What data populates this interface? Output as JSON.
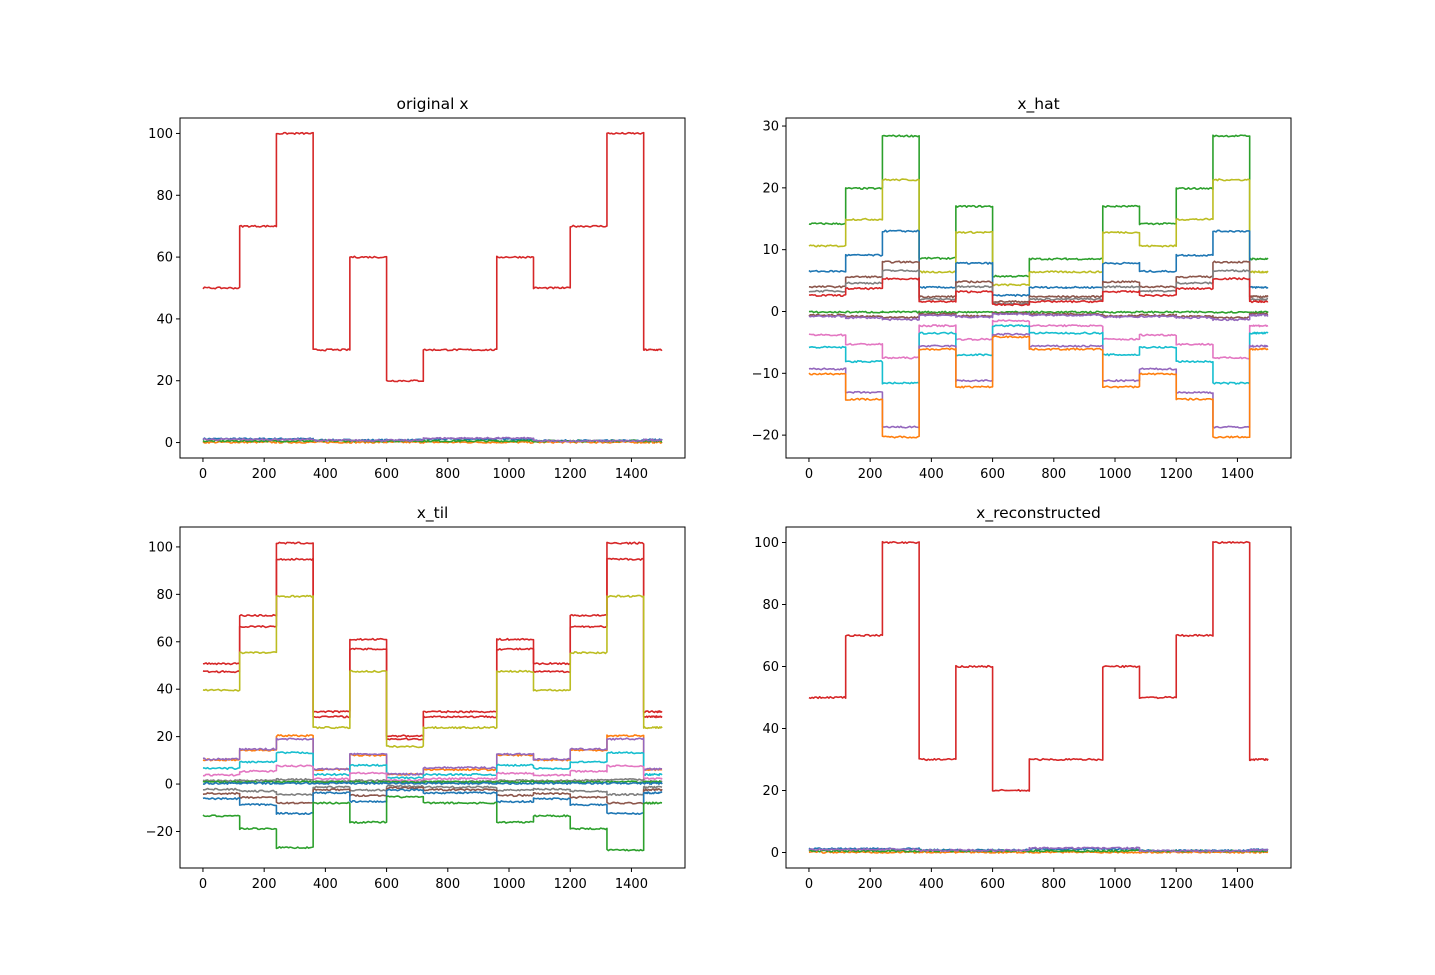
{
  "chart_data": [
    {
      "type": "line",
      "title": "original x",
      "xlabel": "",
      "ylabel": "",
      "xlim": [
        -75,
        1575
      ],
      "ylim": [
        -5,
        105
      ],
      "xticks": [
        0,
        200,
        400,
        600,
        800,
        1000,
        1200,
        1400
      ],
      "yticks": [
        0,
        20,
        40,
        60,
        80,
        100
      ],
      "xtick_labels": [
        "0",
        "200",
        "400",
        "600",
        "800",
        "1000",
        "1200",
        "1400"
      ],
      "ytick_labels": [
        "0",
        "20",
        "40",
        "60",
        "80",
        "100"
      ],
      "grid": false,
      "legend": "none",
      "step_boundaries": [
        0,
        120,
        240,
        360,
        480,
        600,
        720,
        840,
        960,
        1080,
        1200,
        1320,
        1440,
        1500
      ],
      "series": [
        {
          "color": "#1f77b4",
          "values": [
            1.2,
            1.2,
            1.2,
            0.8,
            0.8,
            0.8,
            1.1,
            1.1,
            1.1,
            0.6,
            0.6,
            0.6,
            0.9
          ]
        },
        {
          "color": "#ff7f0e",
          "values": [
            0.1,
            0.1,
            0.1,
            0.1,
            0.1,
            0.1,
            0.1,
            0.1,
            0.1,
            0.1,
            0.1,
            0.1,
            0.1
          ]
        },
        {
          "color": "#2ca02c",
          "values": [
            0.5,
            0.5,
            0.5,
            0.5,
            0.5,
            0.5,
            0.5,
            0.5,
            0.5,
            0.5,
            0.5,
            0.5,
            0.5
          ]
        },
        {
          "color": "#9467bd",
          "values": [
            1.0,
            1.0,
            1.0,
            0.7,
            0.7,
            0.7,
            1.4,
            1.4,
            1.4,
            0.5,
            0.5,
            0.5,
            0.8
          ]
        },
        {
          "color": "#d62728",
          "values": [
            50,
            70,
            100,
            30,
            60,
            20,
            30,
            30,
            60,
            50,
            70,
            100,
            30
          ]
        }
      ]
    },
    {
      "type": "line",
      "title": "x_hat",
      "xlabel": "",
      "ylabel": "",
      "xlim": [
        -75,
        1575
      ],
      "ylim": [
        -23.7,
        31.3
      ],
      "xticks": [
        0,
        200,
        400,
        600,
        800,
        1000,
        1200,
        1400
      ],
      "yticks": [
        -20,
        -10,
        0,
        10,
        20,
        30
      ],
      "xtick_labels": [
        "0",
        "200",
        "400",
        "600",
        "800",
        "1000",
        "1200",
        "1400"
      ],
      "ytick_labels": [
        "−20",
        "−10",
        "0",
        "10",
        "20",
        "30"
      ],
      "grid": false,
      "legend": "none",
      "step_boundaries": [
        0,
        120,
        240,
        360,
        480,
        600,
        720,
        840,
        960,
        1080,
        1200,
        1320,
        1440,
        1500
      ],
      "series": [
        {
          "color": "#2ca02c",
          "values": [
            14.2,
            19.9,
            28.4,
            8.6,
            17.0,
            5.7,
            8.5,
            8.5,
            17.0,
            14.2,
            19.9,
            28.4,
            8.5
          ]
        },
        {
          "color": "#bcbd22",
          "values": [
            10.6,
            14.9,
            21.3,
            6.4,
            12.8,
            4.3,
            6.4,
            6.4,
            12.8,
            10.6,
            14.9,
            21.3,
            6.4
          ]
        },
        {
          "color": "#1f77b4",
          "values": [
            6.5,
            9.1,
            13.0,
            3.9,
            7.8,
            2.6,
            3.9,
            3.9,
            7.8,
            6.5,
            9.1,
            13.0,
            3.9
          ]
        },
        {
          "color": "#8c564b",
          "values": [
            4.0,
            5.6,
            8.0,
            2.4,
            4.8,
            1.6,
            2.4,
            2.4,
            4.8,
            4.0,
            5.6,
            8.0,
            2.4
          ]
        },
        {
          "color": "#7f7f7f",
          "values": [
            3.3,
            4.6,
            6.6,
            2.0,
            4.0,
            1.3,
            2.0,
            2.0,
            4.0,
            3.3,
            4.6,
            6.6,
            2.0
          ]
        },
        {
          "color": "#d62728",
          "values": [
            2.6,
            3.7,
            5.3,
            1.6,
            3.2,
            1.1,
            1.6,
            1.6,
            3.2,
            2.6,
            3.7,
            5.3,
            1.6
          ]
        },
        {
          "color": "#2ca02c",
          "values": [
            -0.1,
            -0.1,
            -0.1,
            -0.1,
            -0.1,
            -0.1,
            -0.1,
            -0.1,
            -0.1,
            -0.1,
            -0.1,
            -0.1,
            -0.1
          ]
        },
        {
          "color": "#8c564b",
          "values": [
            -0.6,
            -0.8,
            -1.0,
            -0.4,
            -0.7,
            -0.3,
            -0.4,
            -0.4,
            -0.7,
            -0.6,
            -0.8,
            -1.0,
            -0.4
          ]
        },
        {
          "color": "#9467bd",
          "values": [
            -0.8,
            -1.0,
            -1.3,
            -0.6,
            -0.9,
            -0.4,
            -0.6,
            -0.6,
            -0.9,
            -0.8,
            -1.0,
            -1.3,
            -0.6
          ]
        },
        {
          "color": "#e377c2",
          "values": [
            -3.8,
            -5.3,
            -7.5,
            -2.3,
            -4.5,
            -1.5,
            -2.3,
            -2.3,
            -4.5,
            -3.8,
            -5.3,
            -7.5,
            -2.3
          ]
        },
        {
          "color": "#17becf",
          "values": [
            -5.8,
            -8.1,
            -11.6,
            -3.5,
            -7.0,
            -2.3,
            -3.5,
            -3.5,
            -7.0,
            -5.8,
            -8.1,
            -11.6,
            -3.5
          ]
        },
        {
          "color": "#9467bd",
          "values": [
            -9.3,
            -13.1,
            -18.7,
            -5.6,
            -11.2,
            -3.7,
            -5.6,
            -5.6,
            -11.2,
            -9.3,
            -13.1,
            -18.7,
            -5.6
          ]
        },
        {
          "color": "#ff7f0e",
          "values": [
            -10.1,
            -14.2,
            -20.3,
            -6.1,
            -12.2,
            -4.1,
            -6.1,
            -6.1,
            -12.2,
            -10.1,
            -14.2,
            -20.3,
            -6.1
          ]
        }
      ]
    },
    {
      "type": "line",
      "title": "x_til",
      "xlabel": "",
      "ylabel": "",
      "xlim": [
        -75,
        1575
      ],
      "ylim": [
        -35.4,
        108.4
      ],
      "xticks": [
        0,
        200,
        400,
        600,
        800,
        1000,
        1200,
        1400
      ],
      "yticks": [
        -20,
        0,
        20,
        40,
        60,
        80,
        100
      ],
      "xtick_labels": [
        "0",
        "200",
        "400",
        "600",
        "800",
        "1000",
        "1200",
        "1400"
      ],
      "ytick_labels": [
        "−20",
        "0",
        "20",
        "40",
        "60",
        "80",
        "100"
      ],
      "grid": false,
      "legend": "none",
      "step_boundaries": [
        0,
        120,
        240,
        360,
        480,
        600,
        720,
        840,
        960,
        1080,
        1200,
        1320,
        1440,
        1500
      ],
      "series": [
        {
          "color": "#d62728",
          "values": [
            50.8,
            71.1,
            101.6,
            30.5,
            61.0,
            20.3,
            30.5,
            30.5,
            61.0,
            50.8,
            71.1,
            101.6,
            30.5
          ]
        },
        {
          "color": "#d62728",
          "values": [
            47.4,
            66.4,
            94.8,
            28.4,
            56.9,
            19.0,
            28.4,
            28.4,
            56.9,
            47.4,
            66.4,
            94.8,
            28.4
          ]
        },
        {
          "color": "#bcbd22",
          "values": [
            39.6,
            55.4,
            79.2,
            23.8,
            47.5,
            15.8,
            23.8,
            23.8,
            47.5,
            39.6,
            55.4,
            79.2,
            23.8
          ]
        },
        {
          "color": "#ff7f0e",
          "values": [
            10.2,
            14.3,
            20.4,
            6.1,
            12.2,
            4.1,
            6.1,
            6.1,
            12.2,
            10.2,
            14.3,
            20.4,
            6.1
          ]
        },
        {
          "color": "#9467bd",
          "values": [
            10.5,
            14.7,
            19.0,
            6.3,
            12.6,
            4.2,
            6.9,
            6.9,
            12.6,
            10.5,
            14.7,
            19.0,
            6.3
          ]
        },
        {
          "color": "#17becf",
          "values": [
            6.6,
            9.3,
            13.2,
            4.0,
            7.9,
            2.6,
            4.0,
            4.0,
            7.9,
            6.6,
            9.3,
            13.2,
            4.0
          ]
        },
        {
          "color": "#e377c2",
          "values": [
            3.8,
            5.4,
            7.6,
            2.3,
            4.6,
            1.5,
            2.3,
            2.3,
            4.6,
            3.8,
            5.4,
            7.6,
            2.3
          ]
        },
        {
          "color": "#7f7f7f",
          "values": [
            1.4,
            1.6,
            1.9,
            1.1,
            1.5,
            0.9,
            1.1,
            1.1,
            1.5,
            1.4,
            1.6,
            1.9,
            1.1
          ]
        },
        {
          "color": "#2ca02c",
          "values": [
            0.9,
            0.9,
            0.9,
            0.9,
            0.9,
            0.9,
            0.9,
            0.9,
            0.9,
            0.9,
            0.9,
            0.9,
            0.9
          ]
        },
        {
          "color": "#1f77b4",
          "values": [
            0.3,
            0.3,
            0.3,
            0.3,
            0.3,
            0.3,
            0.3,
            0.3,
            0.3,
            0.3,
            0.3,
            0.3,
            0.3
          ]
        },
        {
          "color": "#7f7f7f",
          "values": [
            -2.2,
            -3.0,
            -4.4,
            -1.3,
            -2.6,
            -0.9,
            -1.3,
            -1.3,
            -2.6,
            -2.2,
            -3.0,
            -4.4,
            -1.3
          ]
        },
        {
          "color": "#8c564b",
          "values": [
            -4.0,
            -5.6,
            -8.0,
            -2.4,
            -4.8,
            -1.6,
            -2.4,
            -2.4,
            -4.8,
            -4.0,
            -5.6,
            -8.0,
            -2.4
          ]
        },
        {
          "color": "#1f77b4",
          "values": [
            -6.2,
            -8.7,
            -12.4,
            -3.7,
            -7.4,
            -2.5,
            -3.7,
            -3.7,
            -7.4,
            -6.2,
            -8.7,
            -12.4,
            -3.7
          ]
        },
        {
          "color": "#2ca02c",
          "values": [
            -13.4,
            -18.8,
            -26.8,
            -8.0,
            -16.1,
            -5.4,
            -8.0,
            -8.0,
            -16.1,
            -13.4,
            -18.8,
            -27.8,
            -8.0
          ]
        }
      ]
    },
    {
      "type": "line",
      "title": "x_reconstructed",
      "xlabel": "",
      "ylabel": "",
      "xlim": [
        -75,
        1575
      ],
      "ylim": [
        -5,
        105
      ],
      "xticks": [
        0,
        200,
        400,
        600,
        800,
        1000,
        1200,
        1400
      ],
      "yticks": [
        0,
        20,
        40,
        60,
        80,
        100
      ],
      "xtick_labels": [
        "0",
        "200",
        "400",
        "600",
        "800",
        "1000",
        "1200",
        "1400"
      ],
      "ytick_labels": [
        "0",
        "20",
        "40",
        "60",
        "80",
        "100"
      ],
      "grid": false,
      "legend": "none",
      "step_boundaries": [
        0,
        120,
        240,
        360,
        480,
        600,
        720,
        840,
        960,
        1080,
        1200,
        1320,
        1440,
        1500
      ],
      "series": [
        {
          "color": "#1f77b4",
          "values": [
            1.2,
            1.2,
            1.2,
            0.8,
            0.8,
            0.8,
            1.1,
            1.1,
            1.1,
            0.6,
            0.6,
            0.6,
            0.9
          ]
        },
        {
          "color": "#ff7f0e",
          "values": [
            0.1,
            0.1,
            0.1,
            0.1,
            0.1,
            0.1,
            0.1,
            0.1,
            0.1,
            0.1,
            0.1,
            0.1,
            0.1
          ]
        },
        {
          "color": "#2ca02c",
          "values": [
            0.5,
            0.5,
            0.5,
            0.5,
            0.5,
            0.5,
            0.5,
            0.5,
            0.5,
            0.5,
            0.5,
            0.5,
            0.5
          ]
        },
        {
          "color": "#9467bd",
          "values": [
            1.0,
            1.0,
            1.0,
            0.7,
            0.7,
            0.7,
            1.4,
            1.4,
            1.4,
            0.5,
            0.5,
            0.5,
            0.8
          ]
        },
        {
          "color": "#d62728",
          "values": [
            50,
            70,
            100,
            30,
            60,
            20,
            30,
            30,
            60,
            50,
            70,
            100,
            30
          ]
        }
      ]
    }
  ]
}
